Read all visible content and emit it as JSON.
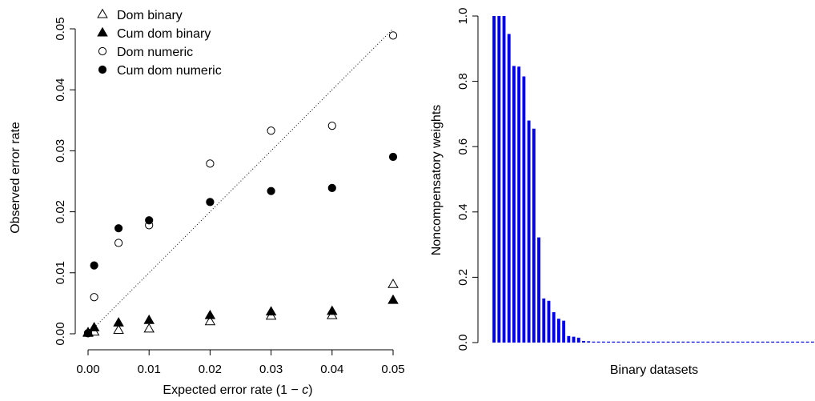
{
  "chart_data": [
    {
      "type": "scatter",
      "xlabel_main": "Expected error rate (1 − ",
      "xlabel_var": "c",
      "xlabel_end": ")",
      "ylabel": "Observed error rate",
      "xlim": [
        0,
        0.05
      ],
      "ylim": [
        0,
        0.05
      ],
      "x_ticks": [
        "0.00",
        "0.01",
        "0.02",
        "0.03",
        "0.04",
        "0.05"
      ],
      "y_ticks": [
        "0.00",
        "0.01",
        "0.02",
        "0.03",
        "0.04",
        "0.05"
      ],
      "reference_line": "y = x (dotted)",
      "legend_position": "top-left",
      "series": [
        {
          "name": "Dom binary",
          "marker": "open-triangle",
          "x": [
            0,
            0.001,
            0.005,
            0.01,
            0.02,
            0.03,
            0.04,
            0.05
          ],
          "y": [
            0.0001,
            0.0003,
            0.0006,
            0.0008,
            0.002,
            0.0029,
            0.003,
            0.0081
          ]
        },
        {
          "name": "Cum dom binary",
          "marker": "filled-triangle",
          "x": [
            0,
            0.001,
            0.005,
            0.01,
            0.02,
            0.03,
            0.04,
            0.05
          ],
          "y": [
            0.0002,
            0.001,
            0.0018,
            0.0022,
            0.003,
            0.0036,
            0.0037,
            0.0055
          ]
        },
        {
          "name": "Dom numeric",
          "marker": "open-circle",
          "x": [
            0,
            0.001,
            0.005,
            0.01,
            0.02,
            0.03,
            0.04,
            0.05
          ],
          "y": [
            0.0001,
            0.006,
            0.0149,
            0.0178,
            0.0279,
            0.0333,
            0.0341,
            0.0489
          ]
        },
        {
          "name": "Cum dom numeric",
          "marker": "filled-circle",
          "x": [
            0,
            0.001,
            0.005,
            0.01,
            0.02,
            0.03,
            0.04,
            0.05
          ],
          "y": [
            0.0001,
            0.0112,
            0.0173,
            0.0186,
            0.0216,
            0.0234,
            0.0239,
            0.029
          ]
        }
      ]
    },
    {
      "type": "bar",
      "xlabel": "Binary datasets",
      "ylabel": "Noncompensatory weights",
      "ylim": [
        0,
        1
      ],
      "y_ticks": [
        "0.0",
        "0.2",
        "0.4",
        "0.6",
        "0.8",
        "1.0"
      ],
      "bar_color": "#0000ee",
      "values": [
        1.0,
        1.0,
        1.0,
        0.945,
        0.847,
        0.845,
        0.815,
        0.68,
        0.655,
        0.322,
        0.135,
        0.128,
        0.093,
        0.073,
        0.067,
        0.02,
        0.018,
        0.015,
        0.005,
        0.004,
        0.003,
        0.003,
        0.003,
        0.002,
        0.002,
        0.002,
        0.002,
        0.002,
        0.002,
        0.002,
        0.002,
        0.002,
        0.002,
        0.002,
        0.002,
        0.002,
        0.002,
        0.002,
        0.002,
        0.002,
        0.002,
        0.002,
        0.002,
        0.002,
        0.002,
        0.002,
        0.002,
        0.002,
        0.002,
        0.002,
        0.002,
        0.002,
        0.002,
        0.002,
        0.002,
        0.002,
        0.002,
        0.002,
        0.002,
        0.002,
        0.002,
        0.002,
        0.002,
        0.002,
        0.002
      ]
    }
  ]
}
